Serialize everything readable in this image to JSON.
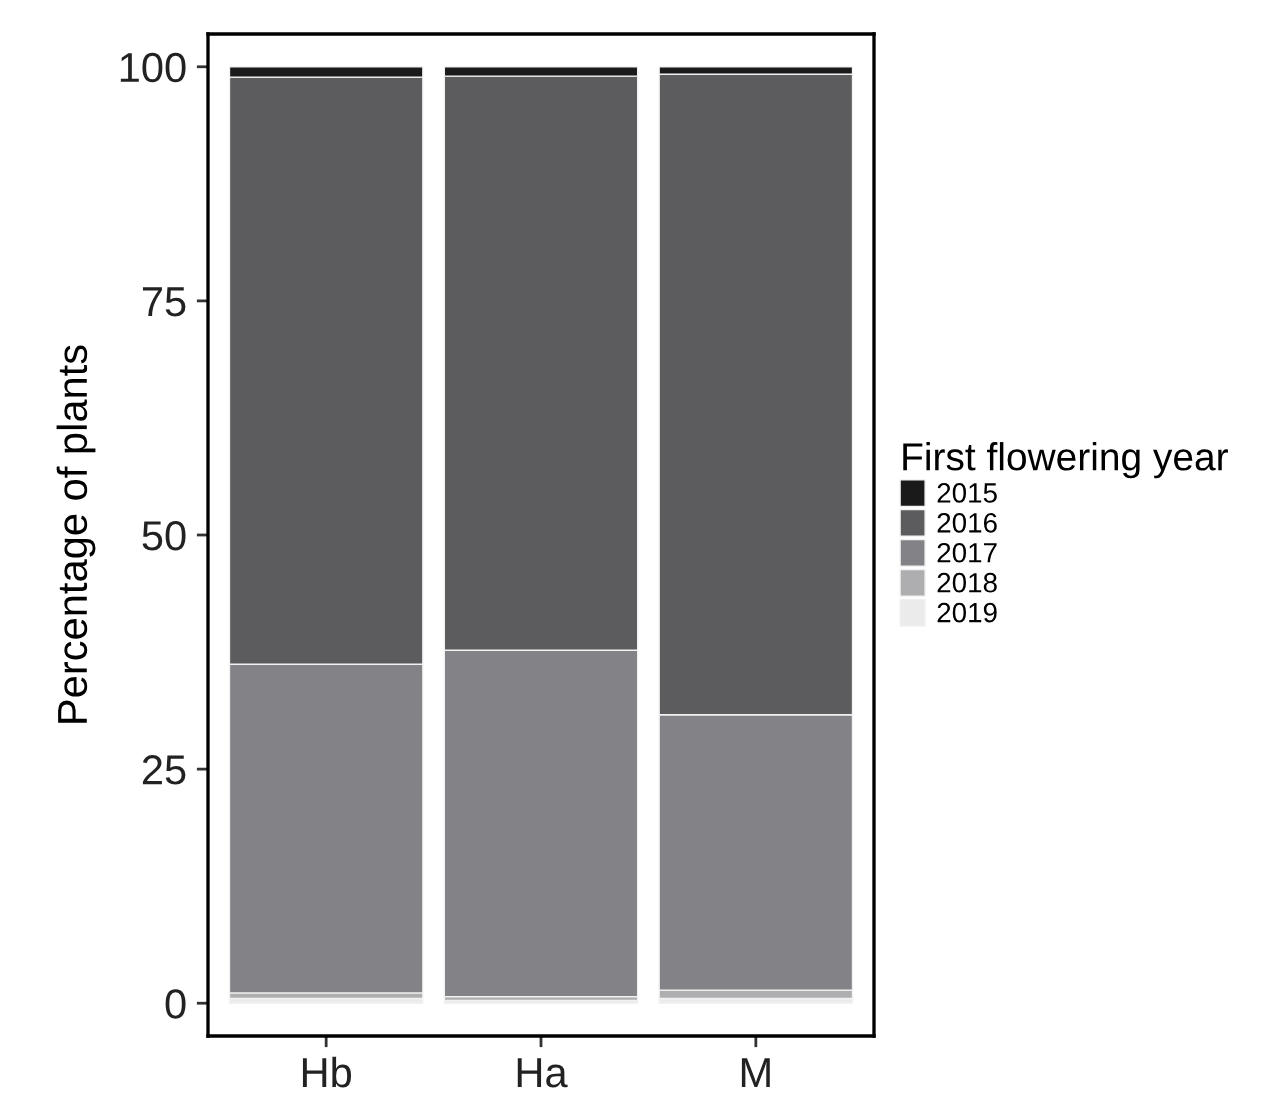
{
  "chart_data": {
    "type": "bar",
    "stacked": true,
    "ylabel": "Percentage of plants",
    "legend_title": "First flowering year",
    "legend": "right",
    "grid": false,
    "categories": [
      "Hb",
      "Ha",
      "M"
    ],
    "ylim": [
      -3.5,
      103.5
    ],
    "yticks": [
      0,
      25,
      50,
      75,
      100
    ],
    "series": [
      {
        "name": "2019",
        "color": "#ebebeb",
        "values": [
          0.5,
          0.3,
          0.5
        ]
      },
      {
        "name": "2018",
        "color": "#aeaeb0",
        "values": [
          0.6,
          0.4,
          0.9
        ]
      },
      {
        "name": "2017",
        "color": "#838387",
        "values": [
          35.1,
          37.0,
          29.4
        ]
      },
      {
        "name": "2016",
        "color": "#5c5c5e",
        "values": [
          62.7,
          61.3,
          68.4
        ]
      },
      {
        "name": "2015",
        "color": "#1a1a1a",
        "values": [
          1.1,
          1.0,
          0.8
        ]
      }
    ]
  }
}
